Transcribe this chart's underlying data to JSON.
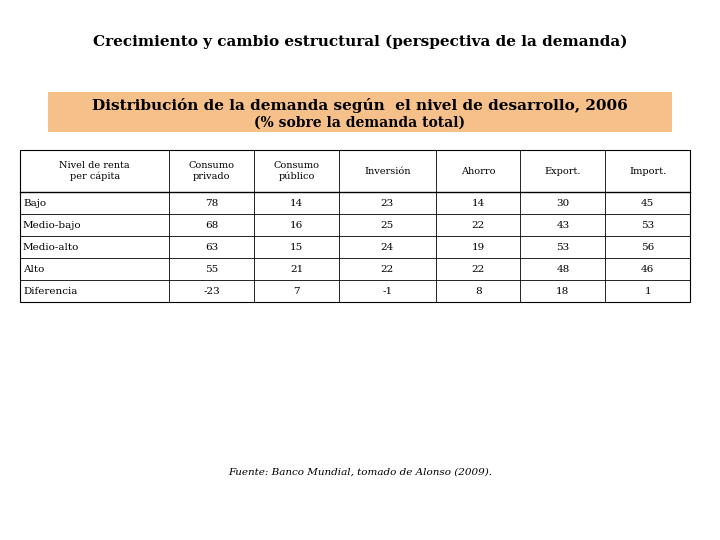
{
  "title": "Crecimiento y cambio estructural (perspectiva de la demanda)",
  "subtitle_line1": "Distribución de la demanda según  el nivel de desarrollo, 2006",
  "subtitle_line2": "(% sobre la demanda total)",
  "subtitle_bg_color": "#F5C08A",
  "col_headers": [
    "Nivel de renta\nper cápita",
    "Consumo\nprivado",
    "Consumo\npúblico",
    "Inversión",
    "Ahorro",
    "Export.",
    "Import."
  ],
  "rows": [
    [
      "Bajo",
      "78",
      "14",
      "23",
      "14",
      "30",
      "45"
    ],
    [
      "Medio-bajo",
      "68",
      "16",
      "25",
      "22",
      "43",
      "53"
    ],
    [
      "Medio-alto",
      "63",
      "15",
      "24",
      "19",
      "53",
      "56"
    ],
    [
      "Alto",
      "55",
      "21",
      "22",
      "22",
      "48",
      "46"
    ],
    [
      "Diferencia",
      "-23",
      "7",
      "-1",
      "8",
      "18",
      "1"
    ]
  ],
  "footer": "Fuente: Banco Mundial, tomado de Alonso (2009).",
  "bg_color": "#ffffff"
}
